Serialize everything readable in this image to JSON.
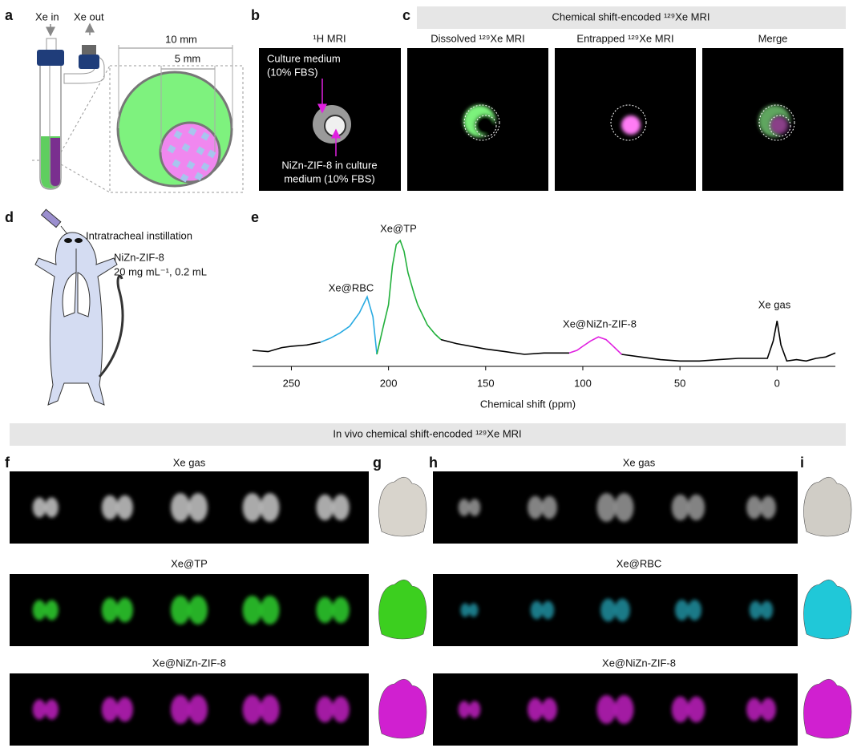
{
  "panel_labels": [
    "a",
    "b",
    "c",
    "d",
    "e",
    "f",
    "g",
    "h",
    "i"
  ],
  "panel_a": {
    "labels": [
      "Xe in",
      "Xe out",
      "10 mm",
      "5 mm"
    ]
  },
  "panel_b": {
    "title": "¹H MRI",
    "culture_medium": [
      "Culture medium",
      "(10% FBS)"
    ],
    "nizn": [
      "NiZn-ZIF-8 in culture",
      "medium (10% FBS)"
    ]
  },
  "panel_c": {
    "banner": "Chemical shift-encoded ¹²⁹Xe MRI",
    "titles": [
      "Dissolved ¹²⁹Xe MRI",
      "Entrapped ¹²⁹Xe MRI",
      "Merge"
    ]
  },
  "panel_d": {
    "labels": [
      "Intratracheal instillation",
      "NiZn-ZIF-8",
      "20 mg mL⁻¹, 0.2 mL"
    ]
  },
  "chart_data": {
    "type": "line",
    "xlabel": "Chemical shift (ppm)",
    "xlim": [
      270,
      -30
    ],
    "xticks": [
      250,
      200,
      150,
      100,
      50,
      0
    ],
    "ylim": [
      0,
      100
    ],
    "annotations": [
      "Xe@TP",
      "Xe@RBC",
      "Xe@NiZn-ZIF-8",
      "Xe gas"
    ],
    "series": [
      {
        "color": "#000000",
        "x": [
          270,
          262,
          255,
          250,
          242,
          235
        ],
        "values": [
          12,
          11,
          14,
          15,
          16,
          18
        ]
      },
      {
        "color": "#29abe2",
        "x": [
          235,
          230,
          225,
          220,
          215,
          211,
          208,
          206
        ],
        "values": [
          18,
          21,
          25,
          30,
          40,
          52,
          37,
          9
        ]
      },
      {
        "color": "#22b03c",
        "x": [
          206,
          203,
          200,
          198,
          196,
          194,
          192,
          190,
          187,
          185,
          180,
          176,
          173
        ],
        "values": [
          9,
          28,
          46,
          75,
          91,
          94,
          86,
          70,
          55,
          46,
          31,
          24,
          20
        ]
      },
      {
        "color": "#000000",
        "x": [
          173,
          165,
          150,
          140,
          130,
          120,
          107
        ],
        "values": [
          20,
          17,
          13,
          11,
          9,
          10,
          10
        ]
      },
      {
        "color": "#e020e0",
        "x": [
          107,
          103,
          100,
          96,
          92,
          88,
          85,
          80
        ],
        "values": [
          10,
          12,
          15,
          19,
          22,
          20,
          16,
          9
        ]
      },
      {
        "color": "#000000",
        "x": [
          80,
          70,
          60,
          50,
          40,
          30,
          20,
          10,
          5,
          2,
          0,
          -2,
          -5,
          -10,
          -15,
          -20,
          -25,
          -30
        ],
        "values": [
          9,
          7,
          5,
          4,
          4,
          5,
          6,
          6,
          6,
          19,
          34,
          16,
          4,
          5,
          4,
          6,
          7,
          10
        ]
      }
    ]
  },
  "panel_fhi": {
    "banner": "In vivo chemical shift-encoded ¹²⁹Xe MRI",
    "f_titles": [
      "Xe gas",
      "Xe@TP",
      "Xe@NiZn-ZIF-8"
    ],
    "h_titles": [
      "Xe gas",
      "Xe@RBC",
      "Xe@NiZn-ZIF-8"
    ]
  }
}
